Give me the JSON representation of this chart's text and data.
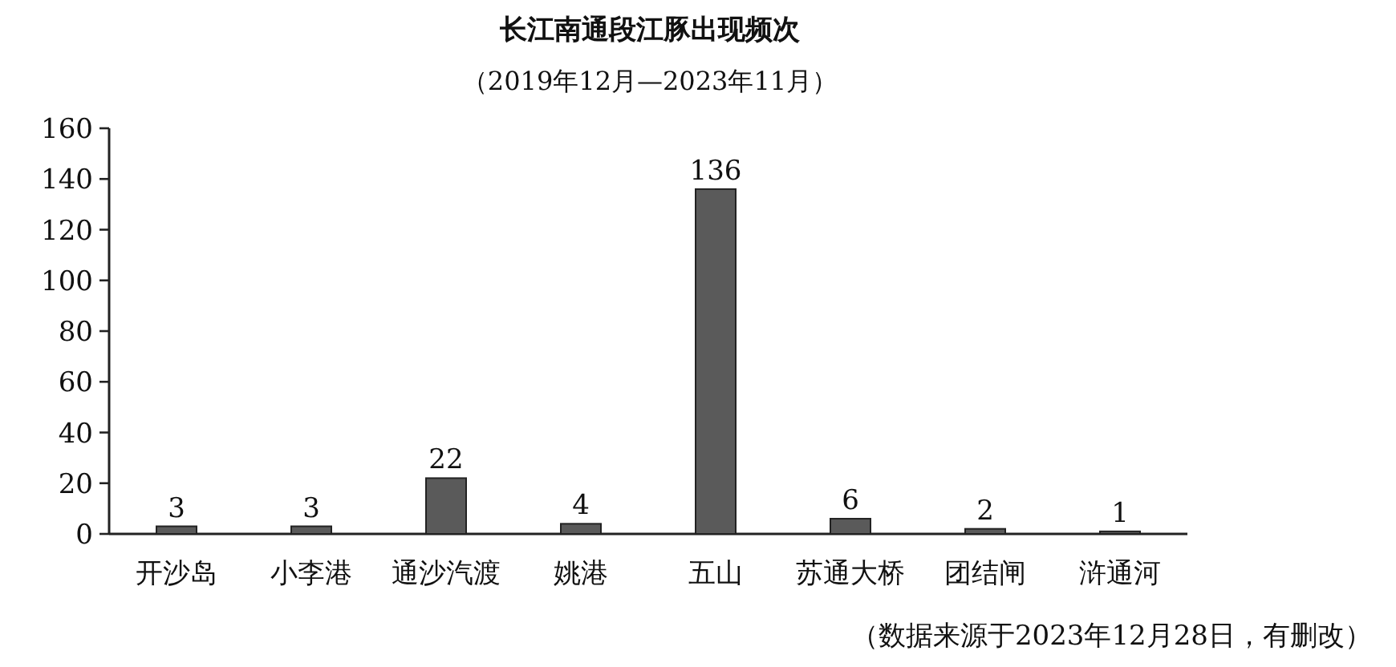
{
  "chart_data": {
    "type": "bar",
    "title": "长江南通段江豚出现频次",
    "subtitle": "（2019年12月—2023年11月）",
    "categories": [
      "开沙岛",
      "小李港",
      "通沙汽渡",
      "姚港",
      "五山",
      "苏通大桥",
      "团结闸",
      "浒通河"
    ],
    "values": [
      3,
      3,
      22,
      4,
      136,
      6,
      2,
      1
    ],
    "color": "#5a5a5a",
    "ylim": [
      0,
      160
    ],
    "yticks": [
      0,
      20,
      40,
      60,
      80,
      100,
      120,
      140,
      160
    ],
    "data_labels": true,
    "annotations": [
      "（数据来源于2023年12月28日，有删改）"
    ]
  }
}
